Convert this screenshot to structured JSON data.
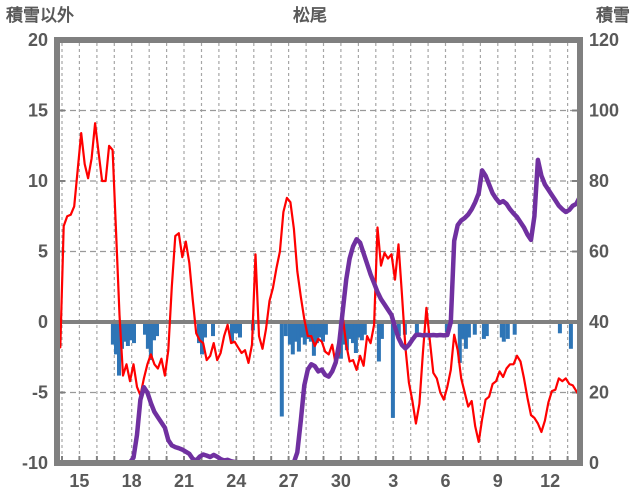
{
  "title": "松尾",
  "left_axis": {
    "label": "積雪以外",
    "ticks": [
      20,
      15,
      10,
      5,
      0,
      -5,
      -10
    ],
    "min": -10,
    "max": 20
  },
  "right_axis": {
    "label": "積雪",
    "ticks": [
      120,
      100,
      80,
      60,
      40,
      20,
      0
    ],
    "min": 0,
    "max": 120
  },
  "x_axis": {
    "tick_labels": [
      "15",
      "18",
      "21",
      "24",
      "27",
      "30",
      "3",
      "6",
      "9",
      "12"
    ],
    "tick_days": [
      1,
      4,
      7,
      10,
      13,
      16,
      19,
      22,
      25,
      28
    ],
    "gridline_day_first": 0,
    "gridline_day_last": 29,
    "domain_days": [
      -0.3,
      29.7
    ]
  },
  "colors": {
    "red_line": "#ff0000",
    "purple_line": "#7030a0",
    "blue_bar": "#2e75b6",
    "axis_gray": "#808080",
    "grid_gray": "#a6a6a6",
    "label_gray": "#595959",
    "background": "#ffffff"
  },
  "chart_data": {
    "type": "line",
    "title": "松尾",
    "x_note": "day axis: 15..30 then 3..12 of next month; day index 0 = first gridline (day 14)",
    "grid": true,
    "red_series": {
      "name": "red-line-left-axis",
      "axis": "left",
      "start_day": -0.3,
      "step_day": 0.2,
      "values": [
        3.5,
        -1.8,
        6.8,
        7.5,
        7.6,
        8.2,
        10.8,
        13.4,
        11.2,
        10.2,
        11.6,
        14.1,
        12.0,
        10.0,
        10.0,
        12.5,
        12.2,
        6.5,
        0.5,
        -3.8,
        -3.0,
        -4.2,
        -3.0,
        -4.6,
        -5.2,
        -4.0,
        -3.0,
        -2.3,
        -3.0,
        -3.3,
        -2.6,
        -3.8,
        -2.0,
        2.5,
        6.1,
        6.3,
        4.6,
        5.7,
        4.2,
        1.6,
        -0.8,
        -1.3,
        -1.5,
        -2.7,
        -2.4,
        -1.5,
        -2.7,
        -2.2,
        -1.0,
        -0.2,
        -1.5,
        -1.4,
        -1.8,
        -2.2,
        -2.0,
        -2.9,
        -1.6,
        4.8,
        -1.0,
        -1.9,
        -0.5,
        1.5,
        2.4,
        3.8,
        5.0,
        7.8,
        8.8,
        8.5,
        6.6,
        3.6,
        1.8,
        0.2,
        -1.0,
        -1.0,
        -1.7,
        -1.2,
        -1.4,
        -2.1,
        -2.3,
        -1.6,
        -3.0,
        -2.2,
        0.4,
        -1.6,
        -2.8,
        -2.7,
        -3.4,
        -2.4,
        -3.1,
        -1.0,
        -1.5,
        -0.2,
        6.7,
        4.0,
        4.9,
        4.5,
        4.8,
        3.0,
        5.5,
        2.0,
        -1.8,
        -4.3,
        -5.6,
        -7.2,
        -5.8,
        -2.2,
        1.0,
        -1.3,
        -3.6,
        -4.0,
        -5.0,
        -5.5,
        -4.6,
        -3.4,
        -0.9,
        -2.0,
        -4.0,
        -5.0,
        -6.0,
        -5.6,
        -7.4,
        -8.5,
        -6.9,
        -5.5,
        -5.3,
        -4.4,
        -4.2,
        -3.5,
        -3.9,
        -3.3,
        -3.0,
        -3.0,
        -2.4,
        -2.8,
        -4.0,
        -5.4,
        -6.6,
        -6.8,
        -7.2,
        -7.8,
        -7.0,
        -5.7,
        -4.9,
        -4.8,
        -4.0,
        -4.2,
        -4.0,
        -4.4,
        -4.5,
        -4.9,
        -5.3
      ]
    },
    "purple_series": {
      "name": "snow-depth-line-right-axis",
      "axis": "right",
      "start_day": -0.3,
      "step_day": 0.2,
      "values": [
        0.2,
        0.2,
        0.2,
        0.2,
        0.2,
        0.2,
        0.2,
        0.2,
        0.2,
        0.2,
        0.2,
        0.2,
        0.2,
        0.2,
        0.2,
        0.2,
        0.2,
        0.2,
        0.2,
        0.2,
        0.2,
        0.2,
        1.5,
        8,
        18,
        21.5,
        20,
        17,
        14.5,
        13,
        11.5,
        10,
        6.5,
        5,
        4.5,
        4.2,
        3.8,
        3.2,
        2.6,
        1.2,
        0.7,
        1.8,
        2.4,
        2.1,
        1.7,
        2.3,
        1.8,
        1.1,
        0.7,
        0.9,
        0.5,
        0.3,
        0.2,
        0.2,
        0.2,
        0.2,
        0.2,
        0.2,
        0.2,
        0.2,
        0.2,
        0.2,
        0.2,
        0.2,
        0.2,
        0.2,
        0.2,
        0.2,
        0.2,
        3,
        12,
        22,
        26.5,
        28,
        27.5,
        26,
        26.5,
        25,
        24.5,
        26,
        28.5,
        34,
        43,
        52,
        58,
        61.5,
        63.5,
        62.5,
        59.5,
        56.5,
        53.5,
        51,
        48.5,
        46.5,
        45,
        43.5,
        42,
        38.5,
        35.5,
        33.5,
        32.5,
        33.5,
        35,
        36.3,
        36.4,
        36.2,
        36.3,
        36.2,
        36.3,
        36.2,
        36.3,
        36.2,
        36.3,
        40,
        63,
        67.5,
        68.8,
        69.5,
        70.5,
        72,
        74,
        76.5,
        83,
        81.5,
        79,
        76.5,
        75,
        73.8,
        74.3,
        73.5,
        72,
        70.8,
        69.8,
        68.3,
        66.8,
        64.8,
        63.3,
        70,
        86,
        81.5,
        79,
        77.5,
        76,
        74.5,
        73,
        72,
        71.2,
        71.8,
        73,
        73.5,
        75.5
      ]
    },
    "blue_bars": {
      "name": "blue-bars-left-axis",
      "axis": "left",
      "points": [
        [
          2.92,
          -1.6
        ],
        [
          3.1,
          -2.3
        ],
        [
          3.27,
          -3.8
        ],
        [
          3.44,
          -1.9
        ],
        [
          3.61,
          -1.4
        ],
        [
          3.78,
          -1.7
        ],
        [
          3.96,
          -1.3
        ],
        [
          4.13,
          -1.5
        ],
        [
          4.76,
          -0.9
        ],
        [
          4.93,
          -1.9
        ],
        [
          5.1,
          -2.7
        ],
        [
          5.28,
          -1.3
        ],
        [
          5.45,
          -1.0
        ],
        [
          7.86,
          -1.5
        ],
        [
          8.03,
          -2.3
        ],
        [
          8.2,
          -1.1
        ],
        [
          8.66,
          -1.0
        ],
        [
          9.75,
          -1.5
        ],
        [
          9.98,
          -0.8
        ],
        [
          10.21,
          -1.1
        ],
        [
          10.95,
          -0.6
        ],
        [
          12.61,
          -6.7
        ],
        [
          12.84,
          -1.0
        ],
        [
          13.07,
          -1.6
        ],
        [
          13.24,
          -2.3
        ],
        [
          13.42,
          -1.4
        ],
        [
          13.59,
          -2.1
        ],
        [
          13.76,
          -1.1
        ],
        [
          13.93,
          -1.6
        ],
        [
          14.11,
          -1.2
        ],
        [
          14.28,
          -1.4
        ],
        [
          14.45,
          -2.4
        ],
        [
          14.62,
          -1.5
        ],
        [
          14.79,
          -1.1
        ],
        [
          14.97,
          -1.4
        ],
        [
          15.14,
          -0.9
        ],
        [
          16.0,
          -2.6
        ],
        [
          16.17,
          -1.6
        ],
        [
          16.34,
          -2.0
        ],
        [
          16.51,
          -1.2
        ],
        [
          16.69,
          -1.5
        ],
        [
          16.86,
          -2.2
        ],
        [
          17.03,
          -1.1
        ],
        [
          17.2,
          -1.3
        ],
        [
          17.37,
          -0.9
        ],
        [
          18.18,
          -2.8
        ],
        [
          18.35,
          -1.2
        ],
        [
          18.98,
          -6.8
        ],
        [
          19.32,
          -1.0
        ],
        [
          19.67,
          -0.9
        ],
        [
          20.36,
          -0.8
        ],
        [
          22.08,
          -0.7
        ],
        [
          22.82,
          -2.9
        ],
        [
          22.99,
          -1.2
        ],
        [
          23.17,
          -1.9
        ],
        [
          23.34,
          -1.1
        ],
        [
          23.68,
          -0.9
        ],
        [
          24.2,
          -1.2
        ],
        [
          24.37,
          -1.0
        ],
        [
          25.23,
          -1.1
        ],
        [
          25.34,
          -1.4
        ],
        [
          25.57,
          -1.2
        ],
        [
          25.97,
          -0.9
        ],
        [
          28.56,
          -0.8
        ],
        [
          29.19,
          -1.9
        ]
      ]
    },
    "left_axis_label": "積雪以外",
    "right_axis_label": "積雪",
    "left_ylim": [
      -10,
      20
    ],
    "right_ylim": [
      0,
      120
    ],
    "x_tick_labels": [
      "15",
      "18",
      "21",
      "24",
      "27",
      "30",
      "3",
      "6",
      "9",
      "12"
    ],
    "legend": "none"
  }
}
